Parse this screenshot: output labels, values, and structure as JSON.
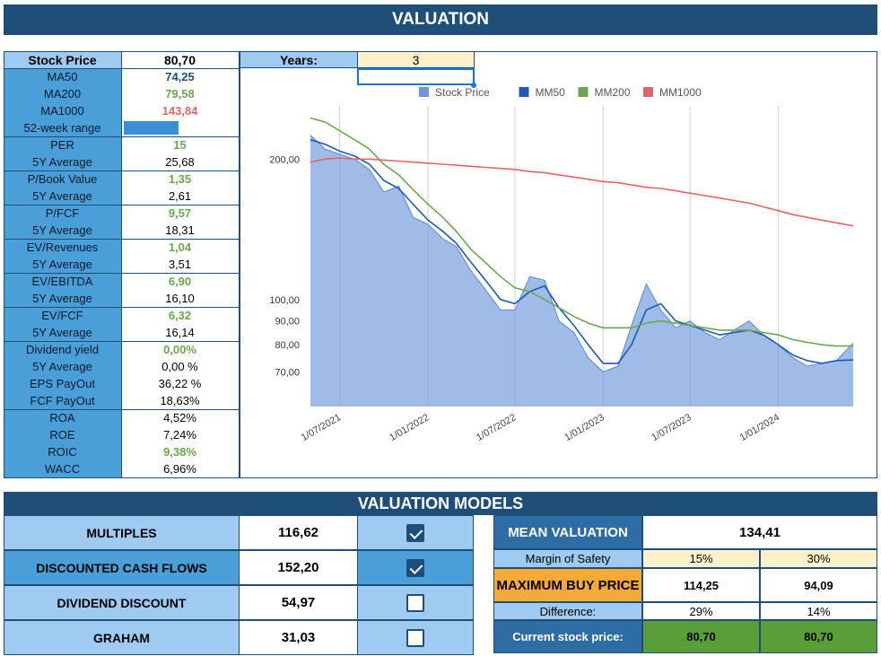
{
  "header": {
    "title": "VALUATION"
  },
  "metrics": {
    "stock_price": {
      "label": "Stock Price",
      "value": "80,70"
    },
    "years": {
      "label": "Years:",
      "value": "3"
    },
    "ma50": {
      "label": "MA50",
      "value": "74,25"
    },
    "ma200": {
      "label": "MA200",
      "value": "79,58"
    },
    "ma1000": {
      "label": "MA1000",
      "value": "143,84"
    },
    "range52": {
      "label": "52-week range",
      "fill_fraction": 0.49
    },
    "per": {
      "label": "PER",
      "value": "15",
      "avg_label": "5Y Average",
      "avg": "25,68"
    },
    "pbv": {
      "label": "P/Book Value",
      "value": "1,35",
      "avg_label": "5Y Average",
      "avg": "2,61"
    },
    "pfcf": {
      "label": "P/FCF",
      "value": "9,57",
      "avg_label": "5Y Average",
      "avg": "18,31"
    },
    "evrev": {
      "label": "EV/Revenues",
      "value": "1,04",
      "avg_label": "5Y Average",
      "avg": "3,51"
    },
    "evebitda": {
      "label": "EV/EBITDA",
      "value": "6,90",
      "avg_label": "5Y Average",
      "avg": "16,10"
    },
    "evfcf": {
      "label": "EV/FCF",
      "value": "6,32",
      "avg_label": "5Y Average",
      "avg": "16,14"
    },
    "div": {
      "label": "Dividend yield",
      "value": "0,00%",
      "avg_label": "5Y Average",
      "avg": "0,00 %"
    },
    "eps_payout": {
      "label": "EPS PayOut",
      "value": "36,22 %"
    },
    "fcf_payout": {
      "label": "FCF PayOut",
      "value": "18,63%"
    },
    "roa": {
      "label": "ROA",
      "value": "4,52%"
    },
    "roe": {
      "label": "ROE",
      "value": "7,24%"
    },
    "roic": {
      "label": "ROIC",
      "value": "9,38%"
    },
    "wacc": {
      "label": "WACC",
      "value": "6,96%"
    }
  },
  "valuation_models": {
    "title": "VALUATION MODELS",
    "rows": [
      {
        "label": "MULTIPLES",
        "value": "116,62",
        "checked": true
      },
      {
        "label": "DISCOUNTED CASH FLOWS",
        "value": "152,20",
        "checked": true
      },
      {
        "label": "DIVIDEND DISCOUNT",
        "value": "54,97",
        "checked": false
      },
      {
        "label": "GRAHAM",
        "value": "31,03",
        "checked": false
      }
    ],
    "mean_label": "MEAN VALUATION",
    "mean_value": "134,41",
    "margin_label": "Margin of Safety",
    "margins": [
      "15%",
      "30%"
    ],
    "max_buy_label": "MAXIMUM BUY PRICE",
    "max_buy": [
      "114,25",
      "94,09"
    ],
    "difference_label": "Difference:",
    "difference": [
      "29%",
      "14%"
    ],
    "current_label": "Current stock price:",
    "current": [
      "80,70",
      "80,70"
    ]
  },
  "colors": {
    "header": "#1f4e79",
    "label_blue": "#4a9fd9",
    "label_light": "#9fcaf2",
    "good": "#6aa84f",
    "bad": "#e06666",
    "max_buy": "#f6a935",
    "current": "#5a9e3a",
    "margin": "#fdf1cc"
  },
  "chart_data": {
    "type": "area",
    "legend": [
      "Stock Price",
      "MM50",
      "MM200",
      "MM1000"
    ],
    "legend_position": "top",
    "series_colors": {
      "Stock Price": "#6d96dc",
      "MM50": "#1c5bb5",
      "MM200": "#6aa84f",
      "MM1000": "#e06666"
    },
    "x_ticks": [
      "1/07/2021",
      "1/01/2022",
      "1/07/2022",
      "1/01/2023",
      "1/07/2023",
      "1/01/2024"
    ],
    "x_range": [
      "2021-05-01",
      "2024-06-05"
    ],
    "y_scale": "log",
    "y_ticks": [
      "200,00",
      "100,00",
      "90,00",
      "80,00",
      "70,00"
    ],
    "y_tick_values": [
      200,
      100,
      90,
      80,
      70
    ],
    "ylim": [
      59,
      260
    ],
    "grid": "vertical",
    "x": [
      "2021-05-01",
      "2021-06-01",
      "2021-07-01",
      "2021-08-01",
      "2021-09-01",
      "2021-10-01",
      "2021-11-01",
      "2021-12-01",
      "2022-01-01",
      "2022-02-01",
      "2022-03-01",
      "2022-04-01",
      "2022-05-01",
      "2022-06-01",
      "2022-07-01",
      "2022-08-01",
      "2022-09-01",
      "2022-10-01",
      "2022-11-01",
      "2022-12-01",
      "2023-01-01",
      "2023-02-01",
      "2023-03-01",
      "2023-04-01",
      "2023-05-01",
      "2023-06-01",
      "2023-07-01",
      "2023-08-01",
      "2023-09-01",
      "2023-10-01",
      "2023-11-01",
      "2023-12-01",
      "2024-01-01",
      "2024-02-01",
      "2024-03-01",
      "2024-04-01",
      "2024-05-01",
      "2024-06-05"
    ],
    "series": [
      {
        "name": "Stock Price",
        "values": [
          225,
          210,
          205,
          200,
          190,
          170,
          175,
          150,
          145,
          135,
          130,
          115,
          105,
          95,
          95,
          112,
          110,
          90,
          85,
          75,
          70,
          72,
          88,
          108,
          95,
          87,
          90,
          85,
          82,
          86,
          90,
          84,
          80,
          75,
          72,
          73,
          74,
          80.7
        ]
      },
      {
        "name": "MM50",
        "values": [
          220,
          215,
          208,
          203,
          195,
          180,
          173,
          160,
          148,
          140,
          132,
          120,
          110,
          100,
          98,
          104,
          107,
          96,
          88,
          80,
          73,
          73,
          80,
          95,
          98,
          90,
          88,
          86,
          84,
          85,
          86,
          84,
          80,
          76,
          74,
          73,
          74,
          74.25
        ]
      },
      {
        "name": "MM200",
        "values": [
          245,
          240,
          230,
          220,
          210,
          195,
          185,
          172,
          160,
          150,
          140,
          128,
          120,
          112,
          106,
          104,
          100,
          96,
          92,
          89,
          87,
          87,
          87,
          89,
          90,
          89,
          88,
          87,
          86,
          86,
          86,
          85,
          84,
          82,
          81,
          80,
          79.5,
          79.58
        ]
      },
      {
        "name": "MM1000",
        "values": [
          197,
          200,
          201,
          200,
          200,
          199,
          198,
          197,
          196,
          195,
          194,
          193,
          192,
          191,
          190,
          188,
          187,
          185,
          183,
          181,
          179,
          178,
          176,
          174,
          173,
          171,
          169,
          167,
          165,
          163,
          161,
          158,
          155,
          152,
          150,
          148,
          146,
          143.84
        ]
      }
    ]
  }
}
